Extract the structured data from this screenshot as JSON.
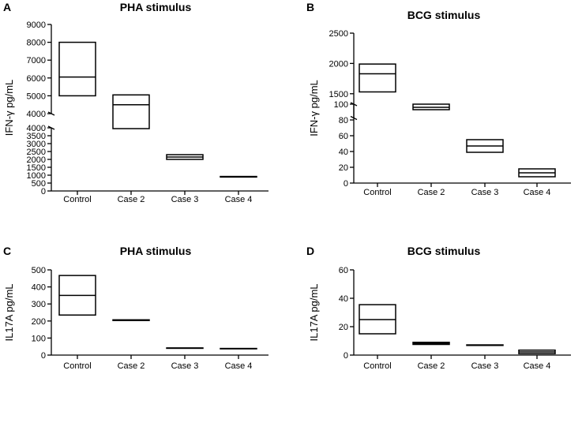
{
  "chart_data": [
    {
      "panel": "A",
      "type": "box",
      "title": "PHA stimulus",
      "ylabel": "IFN-γ pg/mL",
      "categories": [
        "Control",
        "Case 2",
        "Case 3",
        "Case 4"
      ],
      "boxes": [
        {
          "category": "Control",
          "low": 5000,
          "median": 6050,
          "high": 8000
        },
        {
          "category": "Case 2",
          "low": 3950,
          "median": 4500,
          "high": 5050
        },
        {
          "category": "Case 3",
          "low": 2000,
          "median": 2150,
          "high": 2300
        },
        {
          "category": "Case 4",
          "low": 880,
          "median": 900,
          "high": 920
        }
      ],
      "y_segments": [
        {
          "range": [
            0,
            4000
          ],
          "ticks": [
            0,
            500,
            1000,
            1500,
            2000,
            2500,
            3000,
            3500,
            4000
          ],
          "tick_labels": [
            "0",
            "500",
            "1000",
            "1500",
            "2000",
            "2500",
            "3000",
            "3500",
            "4000"
          ]
        },
        {
          "range": [
            4000,
            9000
          ],
          "ticks": [
            4000,
            5000,
            6000,
            7000,
            8000,
            9000
          ],
          "tick_labels": [
            "4000",
            "5000",
            "6000",
            "7000",
            "8000",
            "9000"
          ]
        }
      ]
    },
    {
      "panel": "B",
      "type": "box",
      "title": "BCG stimulus",
      "ylabel": "IFN-γ pg/mL",
      "categories": [
        "Control",
        "Case 2",
        "Case 3",
        "Case 4"
      ],
      "boxes": [
        {
          "category": "Control",
          "low": 1530,
          "median": 1830,
          "high": 1990
        },
        {
          "category": "Case 2",
          "low": 93,
          "median": 96,
          "high": 100
        },
        {
          "category": "Case 3",
          "low": 39,
          "median": 47,
          "high": 55
        },
        {
          "category": "Case 4",
          "low": 8,
          "median": 13,
          "high": 18
        }
      ],
      "y_segments": [
        {
          "range": [
            0,
            100
          ],
          "ticks": [
            0,
            20,
            40,
            60,
            80,
            100
          ],
          "tick_labels": [
            "0",
            "20",
            "40",
            "60",
            "80",
            "100"
          ]
        },
        {
          "range": [
            1100,
            2500
          ],
          "ticks": [
            1500,
            2000,
            2500
          ],
          "tick_labels": [
            "1500",
            "2000",
            "2500"
          ]
        }
      ]
    },
    {
      "panel": "C",
      "type": "box",
      "title": "PHA stimulus",
      "ylabel": "IL17A pg/mL",
      "categories": [
        "Control",
        "Case 2",
        "Case 3",
        "Case 4"
      ],
      "boxes": [
        {
          "category": "Control",
          "low": 235,
          "median": 350,
          "high": 467
        },
        {
          "category": "Case 2",
          "low": 203,
          "median": 205,
          "high": 207
        },
        {
          "category": "Case 3",
          "low": 40,
          "median": 41,
          "high": 42
        },
        {
          "category": "Case 4",
          "low": 37,
          "median": 38,
          "high": 39
        }
      ],
      "y_segments": [
        {
          "range": [
            0,
            500
          ],
          "ticks": [
            0,
            100,
            200,
            300,
            400,
            500
          ],
          "tick_labels": [
            "0",
            "100",
            "200",
            "300",
            "400",
            "500"
          ]
        }
      ]
    },
    {
      "panel": "D",
      "type": "box",
      "title": "BCG stimulus",
      "ylabel": "IL17A pg/mL",
      "categories": [
        "Control",
        "Case 2",
        "Case 3",
        "Case 4"
      ],
      "boxes": [
        {
          "category": "Control",
          "low": 15,
          "median": 25,
          "high": 35.5
        },
        {
          "category": "Case 2",
          "low": 7.5,
          "median": 8.2,
          "high": 9
        },
        {
          "category": "Case 3",
          "low": 6.8,
          "median": 7,
          "high": 7.2
        },
        {
          "category": "Case 4",
          "low": 1,
          "median": 2.2,
          "high": 3.5
        }
      ],
      "y_segments": [
        {
          "range": [
            0,
            60
          ],
          "ticks": [
            0,
            20,
            40,
            60
          ],
          "tick_labels": [
            "0",
            "20",
            "40",
            "60"
          ]
        }
      ]
    }
  ]
}
